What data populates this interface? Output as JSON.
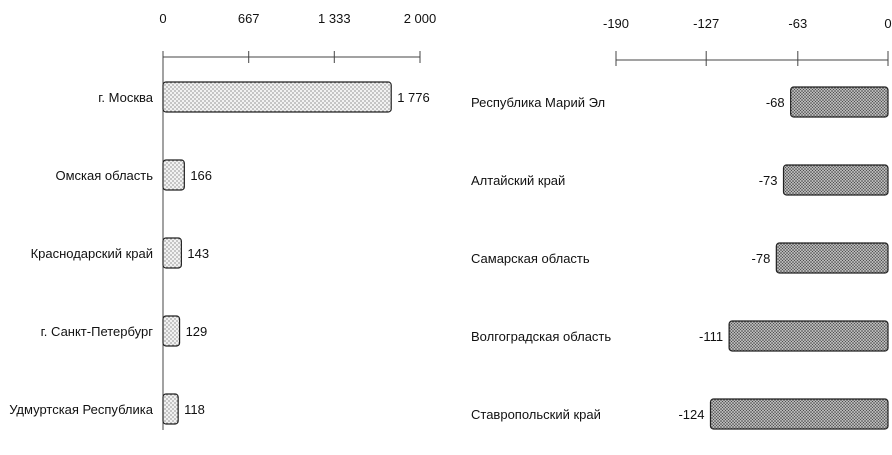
{
  "colors": {
    "positive_fill": "#f2f2f2",
    "positive_dots": "#555555",
    "negative_fill": "#b8b8b8",
    "negative_dots": "#3a3a3a",
    "axis": "#444444",
    "bar_stroke": "#222222"
  },
  "chart_data": [
    {
      "type": "bar",
      "orientation": "horizontal",
      "title": "",
      "xlabel": "",
      "ylabel": "",
      "xlim": [
        0,
        2000
      ],
      "tick_labels": [
        "0",
        "667",
        "1 333",
        "2 000"
      ],
      "tick_values": [
        0,
        667,
        1333,
        2000
      ],
      "categories": [
        "г. Москва",
        "Омская область",
        "Краснодарский край",
        "г. Санкт-Петербург",
        "Удмуртская Республика"
      ],
      "values": [
        1776,
        166,
        143,
        129,
        118
      ],
      "value_labels": [
        "1 776",
        "166",
        "143",
        "129",
        "118"
      ],
      "grid": false,
      "legend": "none"
    },
    {
      "type": "bar",
      "orientation": "horizontal",
      "title": "",
      "xlabel": "",
      "ylabel": "",
      "xlim": [
        -190,
        0
      ],
      "tick_labels": [
        "-190",
        "-127",
        "-63",
        "0"
      ],
      "tick_values": [
        -190,
        -127,
        -63,
        0
      ],
      "categories": [
        "Республика Марий Эл",
        "Алтайский край",
        "Самарская область",
        "Волгоградская область",
        "Ставропольский край"
      ],
      "values": [
        -68,
        -73,
        -78,
        -111,
        -124
      ],
      "value_labels": [
        "-68",
        "-73",
        "-78",
        "-111",
        "-124"
      ],
      "grid": false,
      "legend": "none"
    }
  ]
}
